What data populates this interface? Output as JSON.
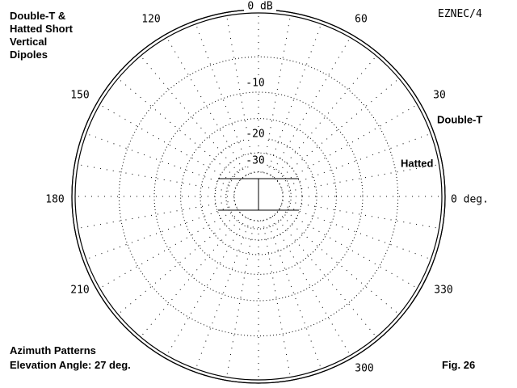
{
  "header": {
    "title_lines": [
      "Double-T &",
      "Hatted Short",
      "Vertical",
      "Dipoles"
    ],
    "program": "EZNEC/4"
  },
  "footer": {
    "pattern_type": "Azimuth Patterns",
    "elevation_line": "Elevation Angle: 27 deg.",
    "figure": "Fig. 26"
  },
  "chart_data": {
    "type": "polar",
    "title": "",
    "radial_unit": "dB",
    "radial_rings": [
      {
        "value": 0,
        "label": "0 dB"
      },
      {
        "value": -10,
        "label": "-10"
      },
      {
        "value": -20,
        "label": "-20"
      },
      {
        "value": -30,
        "label": "-30"
      }
    ],
    "angle_labels": [
      {
        "angle": 0,
        "label": "0 deg."
      },
      {
        "angle": 30,
        "label": "30"
      },
      {
        "angle": 60,
        "label": "60"
      },
      {
        "angle": 120,
        "label": "120"
      },
      {
        "angle": 150,
        "label": "150"
      },
      {
        "angle": 180,
        "label": "180"
      },
      {
        "angle": 210,
        "label": "210"
      },
      {
        "angle": 300,
        "label": "300"
      },
      {
        "angle": 330,
        "label": "330"
      }
    ],
    "angle_gridline_step_deg": 10,
    "grid": true,
    "series": [
      {
        "name": "Double-T",
        "gain_db": 0,
        "shape": "omnidirectional circle",
        "color": "#000000"
      },
      {
        "name": "Hatted",
        "gain_db": -0.3,
        "shape": "omnidirectional circle",
        "color": "#000000"
      }
    ]
  },
  "colors": {
    "background": "#ffffff",
    "ink": "#000000"
  }
}
